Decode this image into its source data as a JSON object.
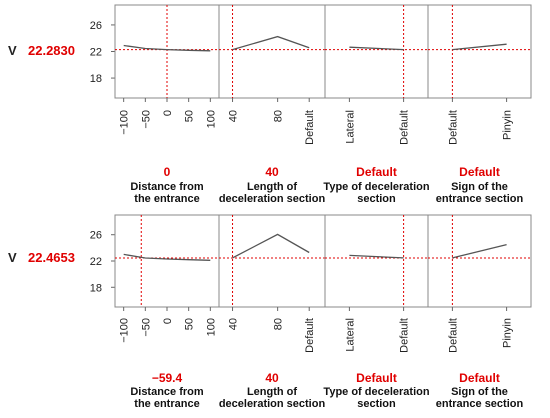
{
  "chart_data": [
    {
      "type": "line",
      "response": {
        "label": "V",
        "value": "22.2830"
      },
      "y_ticks": [
        "26",
        "22",
        "18"
      ],
      "ylim": [
        15,
        29
      ],
      "current_y": 22.283,
      "factors": [
        {
          "tick_labels": [
            "−100",
            "−50",
            "0",
            "50",
            "100"
          ],
          "xlim": [
            -120,
            120
          ],
          "x": [
            -100,
            -50,
            0,
            50,
            100
          ],
          "y": [
            22.9,
            22.45,
            22.28,
            22.18,
            22.1
          ],
          "current_x": 0,
          "setting": "0",
          "name_lines": [
            "Distance from",
            "the entrance"
          ]
        },
        {
          "tick_labels": [
            "40",
            "80",
            "Default"
          ],
          "xlim": [
            28,
            122
          ],
          "x": [
            40,
            80,
            108
          ],
          "y": [
            22.28,
            24.25,
            22.55
          ],
          "current_x": 40,
          "setting": "40",
          "name_lines": [
            "Length of",
            "deceleration section"
          ]
        },
        {
          "tick_labels": [
            "Lateral",
            "Default"
          ],
          "xlim": [
            -0.45,
            1.45
          ],
          "x": [
            0,
            1
          ],
          "y": [
            22.65,
            22.28
          ],
          "current_x": 1,
          "setting": "Default",
          "name_lines": [
            "Type of deceleration",
            "section"
          ]
        },
        {
          "tick_labels": [
            "Default",
            "Pinyin"
          ],
          "xlim": [
            -0.45,
            1.45
          ],
          "x": [
            0,
            1
          ],
          "y": [
            22.28,
            23.1
          ],
          "current_x": 0,
          "setting": "Default",
          "name_lines": [
            "Sign of the",
            "entrance section"
          ]
        }
      ]
    },
    {
      "type": "line",
      "response": {
        "label": "V",
        "value": "22.4653"
      },
      "y_ticks": [
        "26",
        "22",
        "18"
      ],
      "ylim": [
        15,
        29
      ],
      "current_y": 22.4653,
      "factors": [
        {
          "tick_labels": [
            "−100",
            "−50",
            "0",
            "50",
            "100"
          ],
          "xlim": [
            -120,
            120
          ],
          "x": [
            -100,
            -50,
            0,
            50,
            100
          ],
          "y": [
            23.0,
            22.45,
            22.3,
            22.2,
            22.1
          ],
          "current_x": -59.4,
          "setting": "−59.4",
          "name_lines": [
            "Distance from",
            "the entrance"
          ]
        },
        {
          "tick_labels": [
            "40",
            "80",
            "Default"
          ],
          "xlim": [
            28,
            122
          ],
          "x": [
            40,
            80,
            108
          ],
          "y": [
            22.47,
            26.05,
            23.3
          ],
          "current_x": 40,
          "setting": "40",
          "name_lines": [
            "Length of",
            "deceleration section"
          ]
        },
        {
          "tick_labels": [
            "Lateral",
            "Default"
          ],
          "xlim": [
            -0.45,
            1.45
          ],
          "x": [
            0,
            1
          ],
          "y": [
            22.85,
            22.47
          ],
          "current_x": 1,
          "setting": "Default",
          "name_lines": [
            "Type of deceleration",
            "section"
          ]
        },
        {
          "tick_labels": [
            "Default",
            "Pinyin"
          ],
          "xlim": [
            -0.45,
            1.45
          ],
          "x": [
            0,
            1
          ],
          "y": [
            22.47,
            24.5
          ],
          "current_x": 0,
          "setting": "Default",
          "name_lines": [
            "Sign of the",
            "entrance section"
          ]
        }
      ]
    }
  ],
  "colors": {
    "curve": "#555555",
    "crosshair": "#e00000",
    "frame": "#888888",
    "setting_text": "#e00000"
  }
}
